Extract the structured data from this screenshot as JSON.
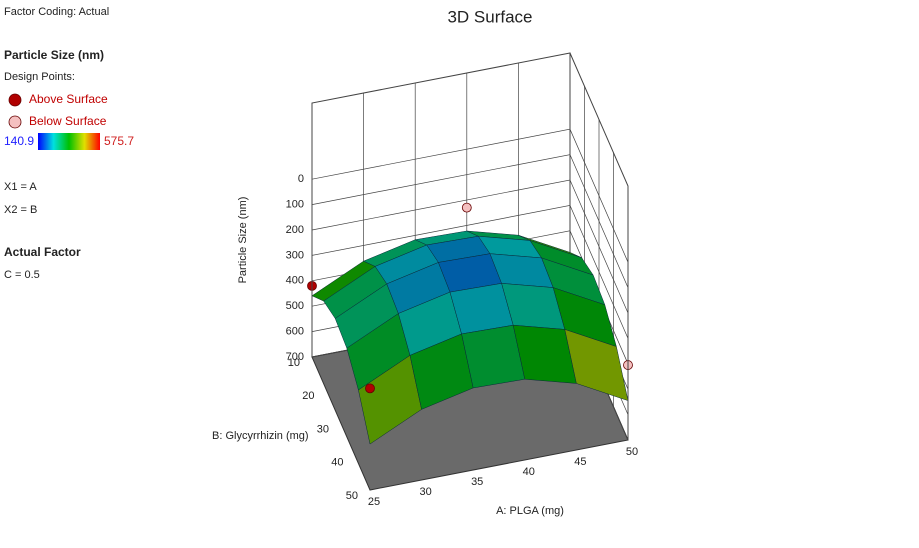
{
  "panel": {
    "factor_coding": "Factor Coding: Actual",
    "response": "Particle Size (nm)",
    "design_points": "Design Points:",
    "x1": "X1 = A",
    "x2": "X2 = B",
    "actual_factor": "Actual Factor",
    "factor_c": "C = 0.5"
  },
  "chart_data": {
    "type": "surface3d",
    "title": "3D Surface",
    "xlabel": "A: PLGA (mg)",
    "ylabel": "B: Glycyrrhizin (mg)",
    "zlabel": "Particle Size (nm)",
    "xlim": [
      25,
      50
    ],
    "ylim": [
      10,
      50
    ],
    "zlim": [
      700,
      -300
    ],
    "xticks": [
      25,
      30,
      35,
      40,
      45,
      50
    ],
    "yticks": [
      10,
      20,
      30,
      40,
      50
    ],
    "zticks": [
      0,
      100,
      200,
      300,
      400,
      500,
      600,
      700
    ],
    "x": [
      25,
      30,
      35,
      40,
      45,
      50
    ],
    "y": [
      10,
      18,
      26,
      34,
      42,
      50
    ],
    "z": [
      [
        459,
        362,
        317,
        322,
        378,
        485
      ],
      [
        375,
        278,
        233,
        238,
        294,
        401
      ],
      [
        339,
        242,
        197,
        202,
        258,
        365
      ],
      [
        351,
        254,
        209,
        214,
        270,
        377
      ],
      [
        411,
        314,
        269,
        274,
        330,
        437
      ],
      [
        519,
        422,
        377,
        382,
        438,
        545
      ]
    ],
    "color_range": [
      140.9,
      575.7
    ],
    "colormap": [
      "#0000ff",
      "#00e0e0",
      "#00c000",
      "#e0e000",
      "#ff0000"
    ],
    "legend": [
      {
        "name": "Above Surface",
        "color": "#b00000"
      },
      {
        "name": "Below Surface",
        "color": "#f4c0c0"
      }
    ],
    "points": [
      {
        "x": 25,
        "y": 10,
        "z": 420,
        "kind": 0
      },
      {
        "x": 25,
        "y": 50,
        "z": 300,
        "kind": 0
      },
      {
        "x": 40,
        "y": 10,
        "z": 230,
        "kind": 1
      },
      {
        "x": 50,
        "y": 50,
        "z": 405,
        "kind": 1
      }
    ]
  }
}
